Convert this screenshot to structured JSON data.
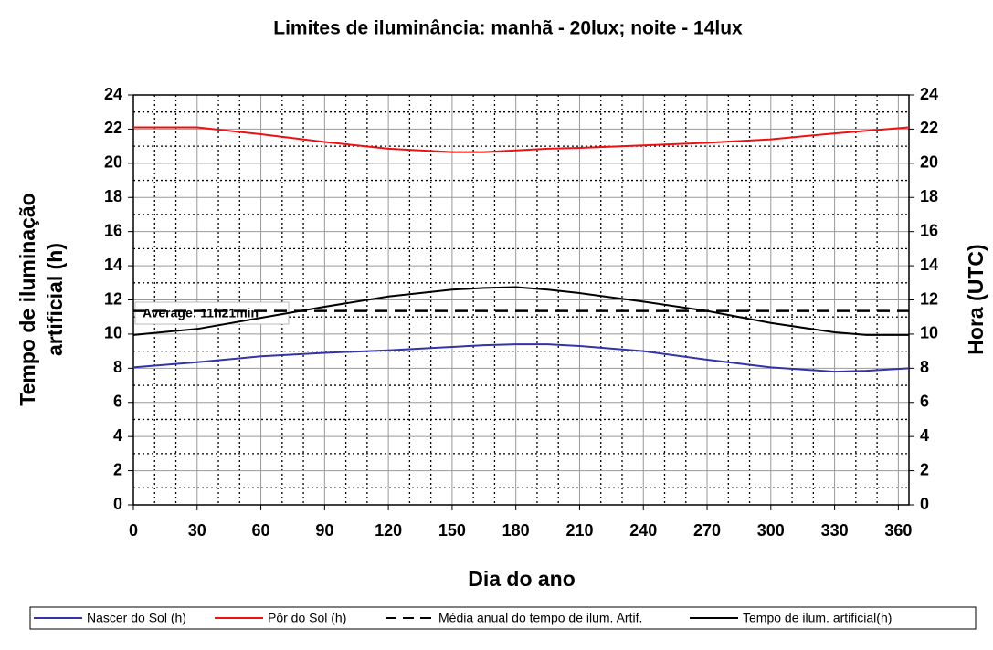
{
  "chart_data": {
    "type": "line",
    "title": "Limites de iluminância: manhã - 20lux; noite - 14lux",
    "xlabel": "Dia do ano",
    "ylabel": [
      "Tempo de iluminação",
      "artificial (h)"
    ],
    "y2label": "Hora (UTC)",
    "annotation": "Average: 11h21min",
    "x": [
      0,
      30,
      60,
      90,
      120,
      150,
      165,
      180,
      195,
      210,
      240,
      270,
      300,
      330,
      345,
      365
    ],
    "xlim": [
      0,
      365
    ],
    "xticks": [
      0,
      30,
      60,
      90,
      120,
      150,
      180,
      210,
      240,
      270,
      300,
      330,
      360
    ],
    "ylim": [
      0,
      24
    ],
    "yticks": [
      0,
      2,
      4,
      6,
      8,
      10,
      12,
      14,
      16,
      18,
      20,
      22,
      24
    ],
    "y2lim": [
      0,
      24
    ],
    "y2ticks": [
      0,
      2,
      4,
      6,
      8,
      10,
      12,
      14,
      16,
      18,
      20,
      22,
      24
    ],
    "grid": true,
    "legend": "bottom",
    "series": [
      {
        "name": "Nascer do Sol (h)",
        "color": "#3333aa",
        "axis": "y2",
        "values": [
          8.05,
          8.35,
          8.7,
          8.9,
          9.05,
          9.25,
          9.35,
          9.4,
          9.4,
          9.3,
          9.0,
          8.5,
          8.05,
          7.8,
          7.85,
          8.0
        ]
      },
      {
        "name": "Pôr do Sol (h)",
        "color": "#ee1111",
        "axis": "y2",
        "values": [
          22.1,
          22.1,
          21.7,
          21.25,
          20.85,
          20.65,
          20.65,
          20.75,
          20.85,
          20.9,
          21.05,
          21.2,
          21.4,
          21.75,
          21.9,
          22.1
        ]
      },
      {
        "name": "Média anual do tempo de ilum. Artif.",
        "color": "#000000",
        "dashed": true,
        "values": [
          11.35,
          11.35,
          11.35,
          11.35,
          11.35,
          11.35,
          11.35,
          11.35,
          11.35,
          11.35,
          11.35,
          11.35,
          11.35,
          11.35,
          11.35,
          11.35
        ]
      },
      {
        "name": "Tempo de ilum. artificial(h)",
        "color": "#000000",
        "values": [
          9.95,
          10.3,
          10.95,
          11.6,
          12.2,
          12.6,
          12.7,
          12.75,
          12.6,
          12.4,
          11.9,
          11.35,
          10.65,
          10.1,
          9.95,
          9.95
        ]
      }
    ]
  }
}
